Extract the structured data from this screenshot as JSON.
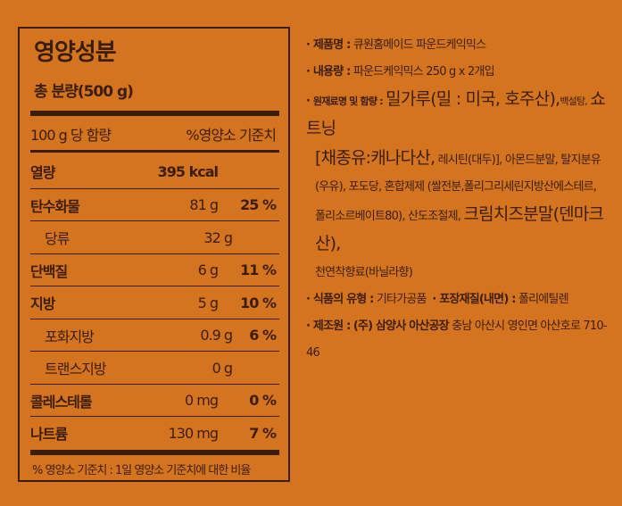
{
  "nutrition": {
    "title": "영양성분",
    "total": "총 분량(500 g)",
    "header_left": "100 g 당 함량",
    "header_right": "%영양소 기준치",
    "rows": [
      {
        "name": "열량",
        "amount": "395 kcal",
        "pct": ""
      },
      {
        "name": "탄수화물",
        "amount": "81 g",
        "pct": "25 %"
      },
      {
        "name": "당류",
        "amount": "32 g",
        "pct": ""
      },
      {
        "name": "단백질",
        "amount": "6 g",
        "pct": "11 %"
      },
      {
        "name": "지방",
        "amount": "5 g",
        "pct": "10 %"
      },
      {
        "name": "포화지방",
        "amount": "0.9 g",
        "pct": "6 %"
      },
      {
        "name": "트랜스지방",
        "amount": "0 g",
        "pct": ""
      },
      {
        "name": "콜레스테롤",
        "amount": "0 mg",
        "pct": "0 %"
      },
      {
        "name": "나트륨",
        "amount": "130 mg",
        "pct": "7 %"
      }
    ],
    "footnote": "% 영양소 기준치 : 1일 영양소 기준치에 대한 비율"
  },
  "info": {
    "product_label": "제품명 :",
    "product": "큐원홈메이드 파운드케익믹스",
    "content_label": "내용량 :",
    "content": "파운드케익믹스 250 g x 2개입",
    "ingredients_label": "원재료명 및 함량 :",
    "ing1": "밀가루(밀 : 미국, 호주산),",
    "ing2": "백설탕,",
    "ing3": "쇼트닝",
    "ing4": "[채종유:캐나다산,",
    "ing5": "레시틴(대두)], 아몬드분말, 탈지분유",
    "ing6": "(우유), 포도당, 혼합제제 (쌀전분,폴리그리세린지방산에스테르,",
    "ing7": "폴리소르베이트80), 산도조절제,",
    "ing8": "크림치즈분말(덴마크산),",
    "ing9": "천연착향료(바닐라향)",
    "type_label": "식품의 유형 :",
    "type": "기타가공품",
    "pack_label": "포장재질(내면) :",
    "pack": "폴리에틸렌",
    "maker_label": "제조원 :",
    "maker_bold": "(주) 삼양사 아산공장",
    "maker": "충남 아산시 영인면 아산호로 710-46"
  }
}
